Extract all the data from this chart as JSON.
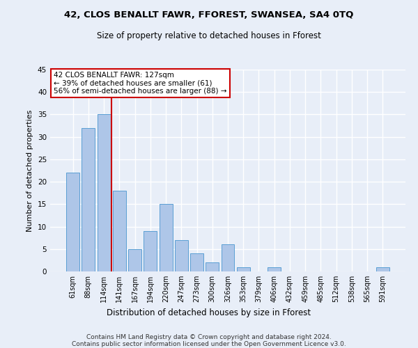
{
  "title1": "42, CLOS BENALLT FAWR, FFOREST, SWANSEA, SA4 0TQ",
  "title2": "Size of property relative to detached houses in Fforest",
  "xlabel": "Distribution of detached houses by size in Fforest",
  "ylabel": "Number of detached properties",
  "categories": [
    "61sqm",
    "88sqm",
    "114sqm",
    "141sqm",
    "167sqm",
    "194sqm",
    "220sqm",
    "247sqm",
    "273sqm",
    "300sqm",
    "326sqm",
    "353sqm",
    "379sqm",
    "406sqm",
    "432sqm",
    "459sqm",
    "485sqm",
    "512sqm",
    "538sqm",
    "565sqm",
    "591sqm"
  ],
  "values": [
    22,
    32,
    35,
    18,
    5,
    9,
    15,
    7,
    4,
    2,
    6,
    1,
    0,
    1,
    0,
    0,
    0,
    0,
    0,
    0,
    1
  ],
  "bar_color": "#aec6e8",
  "bar_edge_color": "#5a9fd4",
  "background_color": "#e8eef8",
  "grid_color": "#ffffff",
  "red_line_x": 2.5,
  "annotation_line1": "42 CLOS BENALLT FAWR: 127sqm",
  "annotation_line2": "← 39% of detached houses are smaller (61)",
  "annotation_line3": "56% of semi-detached houses are larger (88) →",
  "annotation_box_color": "#ffffff",
  "annotation_box_edge_color": "#cc0000",
  "vline_color": "#cc0000",
  "footer1": "Contains HM Land Registry data © Crown copyright and database right 2024.",
  "footer2": "Contains public sector information licensed under the Open Government Licence v3.0.",
  "ylim": [
    0,
    45
  ],
  "yticks": [
    0,
    5,
    10,
    15,
    20,
    25,
    30,
    35,
    40,
    45
  ]
}
